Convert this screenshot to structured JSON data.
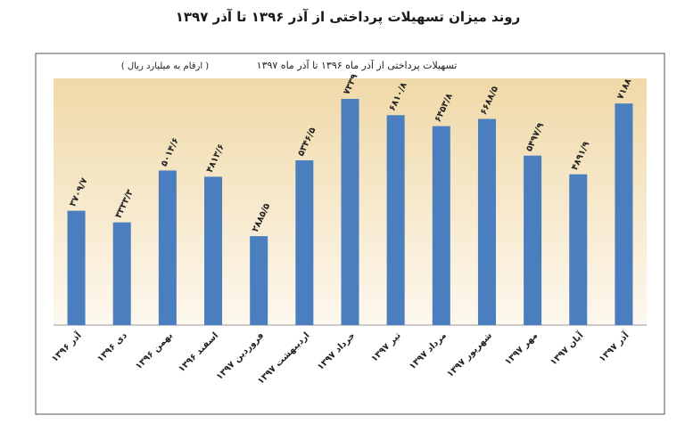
{
  "chart_data": {
    "type": "bar",
    "title": "روند میزان تسهیلات پرداختی از آذر ۱۳۹۶ تا آذر ۱۳۹۷",
    "subtitle": "تسهیلات پرداختی از آذر ماه ۱۳۹۶ تا آذر ماه ۱۳۹۷",
    "note": "( ارقام به میلیارد ریال )",
    "categories": [
      "آذر ۱۳۹۶",
      "دی ۱۳۹۶",
      "بهمن ۱۳۹۶",
      "اسفند ۱۳۹۶",
      "فروردین ۱۳۹۷",
      "اردیبهشت ۱۳۹۷",
      "خرداد ۱۳۹۷",
      "تیر ۱۳۹۷",
      "مرداد ۱۳۹۷",
      "شهریور ۱۳۹۷",
      "مهر ۱۳۹۷",
      "آبان ۱۳۹۷",
      "آذر ۱۳۹۷"
    ],
    "values": [
      3709.7,
      3333.3,
      5014.6,
      4813.6,
      2885.5,
      5346.5,
      7339,
      6810.8,
      6453.8,
      6688.5,
      5497.9,
      4891.9,
      7188
    ],
    "value_labels": [
      "۳۷۰۹/۷",
      "۳۳۳۳/۳",
      "۵۰۱۴/۶",
      "۴۸۱۳/۶",
      "۲۸۸۵/۵",
      "۵۳۴۶/۵",
      "۷۳۳۹",
      "۶۸۱۰/۸",
      "۶۴۵۳/۸",
      "۶۶۸۸/۵",
      "۵۴۹۷/۹",
      "۴۸۹۱/۹",
      "۷۱۸۸"
    ],
    "color": "#4a7ebf"
  }
}
